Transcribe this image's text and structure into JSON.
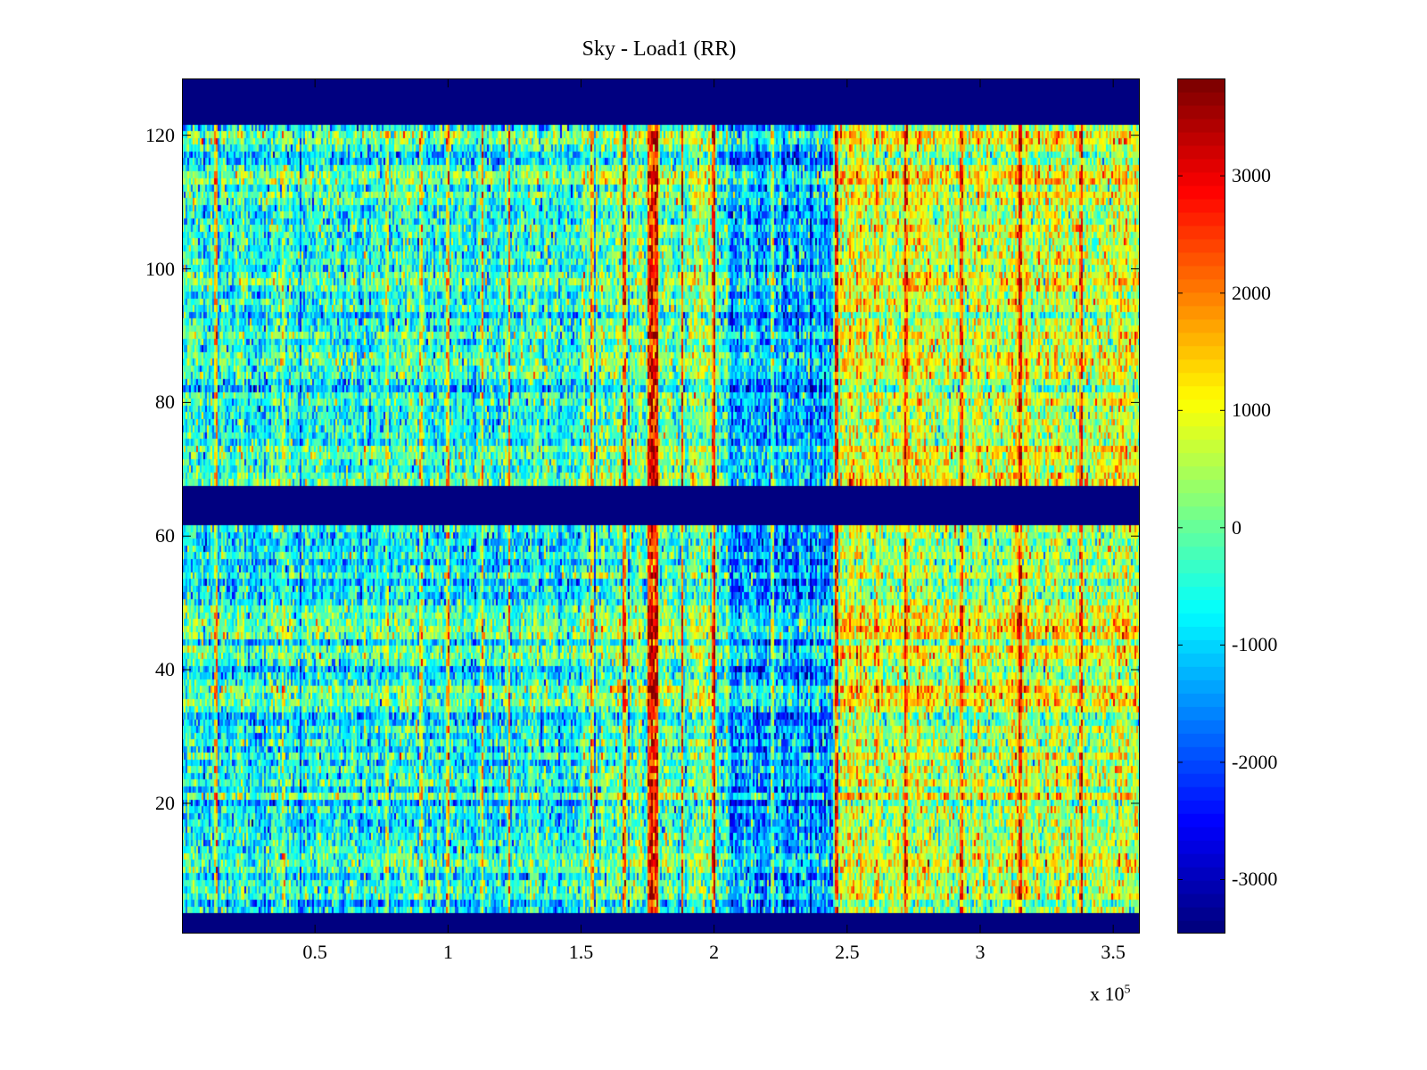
{
  "chart_data": {
    "type": "heatmap",
    "title": "Sky - Load1 (RR)",
    "xlabel": "",
    "ylabel": "",
    "x_multiplier": "x 10",
    "x_multiplier_exp": "5",
    "xlim": [
      0,
      3.6
    ],
    "ylim": [
      0.5,
      128.5
    ],
    "n_rows": 128,
    "n_cols": 537,
    "xticks": [
      0.5,
      1,
      1.5,
      2,
      2.5,
      3,
      3.5
    ],
    "xtick_labels": [
      "0.5",
      "1",
      "1.5",
      "2",
      "2.5",
      "3",
      "3.5"
    ],
    "yticks": [
      20,
      40,
      60,
      80,
      100,
      120
    ],
    "ytick_labels": [
      "20",
      "40",
      "60",
      "80",
      "100",
      "120"
    ],
    "colormap": "jet",
    "clim": [
      -3460,
      3830
    ],
    "colorbar_ticks": [
      3000,
      2000,
      1000,
      0,
      -1000,
      -2000,
      -3000
    ],
    "colorbar_tick_labels": [
      "3000",
      "2000",
      "1000",
      "0",
      "-1000",
      "-2000",
      "-3000"
    ],
    "masked_row_ranges": [
      [
        1,
        3
      ],
      [
        62,
        67
      ],
      [
        122,
        128
      ]
    ],
    "masked_value": -3460,
    "bright_columns": [
      {
        "x": 0.13,
        "amp": 2200
      },
      {
        "x": 0.38,
        "amp": 1500
      },
      {
        "x": 0.77,
        "amp": 1500
      },
      {
        "x": 0.9,
        "amp": 2000
      },
      {
        "x": 1.0,
        "amp": 2000
      },
      {
        "x": 1.13,
        "amp": 2600
      },
      {
        "x": 1.23,
        "amp": 2800
      },
      {
        "x": 1.54,
        "amp": 2800
      },
      {
        "x": 1.66,
        "amp": 3000
      },
      {
        "x": 1.77,
        "amp": 3600
      },
      {
        "x": 1.88,
        "amp": 3000
      },
      {
        "x": 2.0,
        "amp": 3000
      },
      {
        "x": 2.22,
        "amp": 2200
      },
      {
        "x": 2.46,
        "amp": 2600
      },
      {
        "x": 2.72,
        "amp": 2200
      },
      {
        "x": 2.93,
        "amp": 2600
      },
      {
        "x": 3.15,
        "amp": 2800
      },
      {
        "x": 3.38,
        "amp": 2200
      }
    ],
    "region_means": [
      {
        "x_range": [
          0,
          1.5
        ],
        "mean": -500
      },
      {
        "x_range": [
          1.5,
          2.05
        ],
        "mean": 0
      },
      {
        "x_range": [
          2.05,
          2.45
        ],
        "mean": -1300
      },
      {
        "x_range": [
          2.45,
          3.6
        ],
        "mean": 700
      }
    ],
    "noise_std": 700,
    "grid": false,
    "legend": "colorbar-right"
  }
}
